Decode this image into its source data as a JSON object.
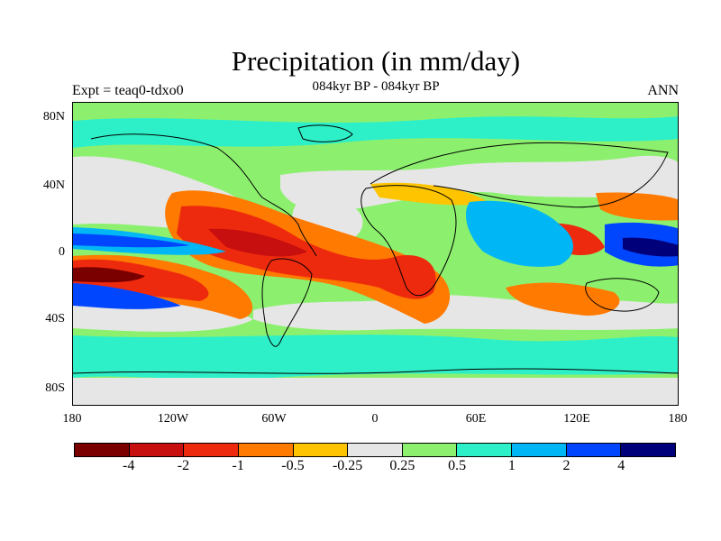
{
  "title": "Precipitation (in mm/day)",
  "subtitle": "084kyr BP - 084kyr BP",
  "experiment_label": "Expt = teaq0-tdxo0",
  "season_label": "ANN",
  "lat_ticks": [
    "80N",
    "40N",
    "0",
    "40S",
    "80S"
  ],
  "lon_ticks": [
    "180",
    "120W",
    "60W",
    "0",
    "60E",
    "120E",
    "180"
  ],
  "colorbar": {
    "colors": [
      "#7a0000",
      "#c80f0f",
      "#ee2a0e",
      "#ff7a00",
      "#ffc400",
      "#e6e6e6",
      "#8cf06e",
      "#2ef0c8",
      "#00b6f5",
      "#0046ff",
      "#00007a"
    ],
    "labels": [
      "-4",
      "-2",
      "-1",
      "-0.5",
      "-0.25",
      "0.25",
      "0.5",
      "1",
      "2",
      "4"
    ]
  },
  "colors": {
    "land_background": "#e6e6e6",
    "coastline": "#000000"
  }
}
